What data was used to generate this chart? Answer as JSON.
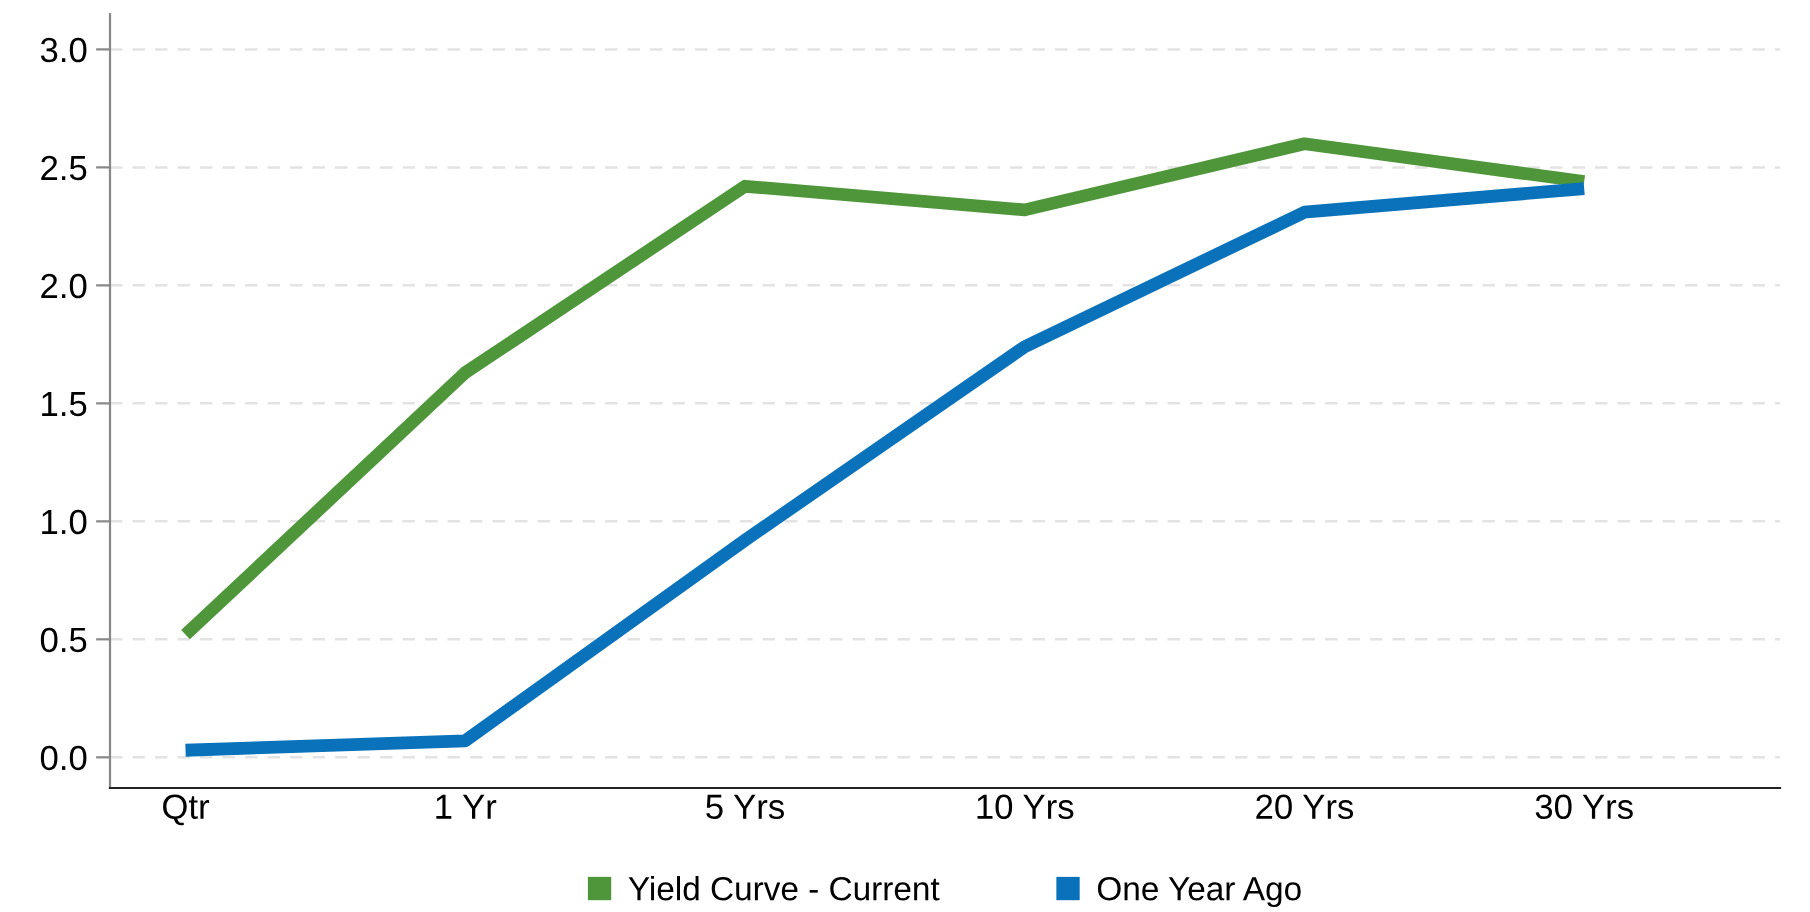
{
  "chart_data": {
    "type": "line",
    "categories": [
      "Qtr",
      "1 Yr",
      "5 Yrs",
      "10 Yrs",
      "20 Yrs",
      "30 Yrs"
    ],
    "series": [
      {
        "name": "Yield Curve - Current",
        "color": "#4f963b",
        "values": [
          0.52,
          1.63,
          2.42,
          2.32,
          2.6,
          2.44
        ]
      },
      {
        "name": "One Year Ago",
        "color": "#0a72ba",
        "values": [
          0.03,
          0.07,
          0.92,
          1.74,
          2.31,
          2.41
        ]
      }
    ],
    "ylim": [
      -0.13,
      3.15
    ],
    "yticks": [
      {
        "value": 0,
        "label": "0.0"
      },
      {
        "value": 0.5,
        "label": "0.5"
      },
      {
        "value": 1,
        "label": "1.0"
      },
      {
        "value": 1.5,
        "label": "1.5"
      },
      {
        "value": 2,
        "label": "2.0"
      },
      {
        "value": 2.5,
        "label": "2.5"
      },
      {
        "value": 3,
        "label": "3.0"
      }
    ],
    "grid": "y",
    "legend": "bottom",
    "marker": "none",
    "line_style": "solid"
  }
}
